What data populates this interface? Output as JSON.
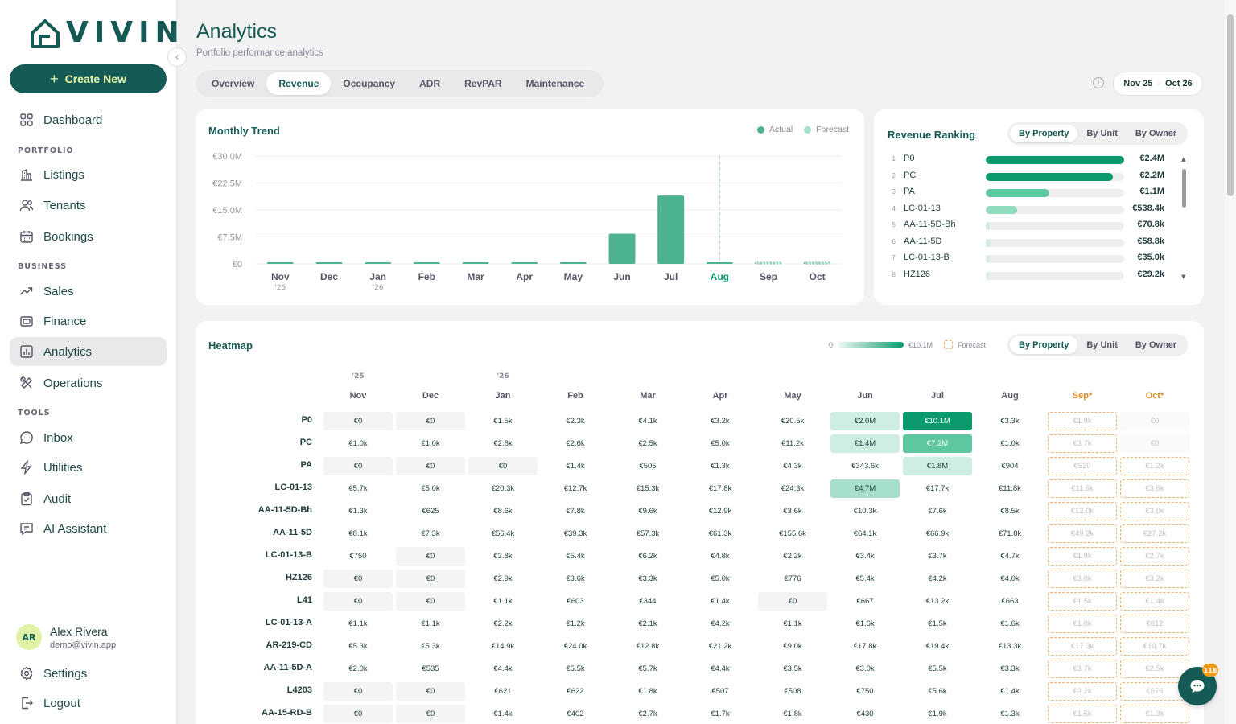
{
  "app": {
    "brand": "VIVIN",
    "create_label": "Create New"
  },
  "colors": {
    "brand": "#165a55",
    "accent": "#e6f6a9",
    "actual": "#4db38e",
    "forecast": "#a6e0cc",
    "forecast_border": "#f0b070",
    "forecast_text": "#e0891a"
  },
  "sidebar": {
    "dashboard": "Dashboard",
    "sec_portfolio": "PORTFOLIO",
    "listings": "Listings",
    "tenants": "Tenants",
    "bookings": "Bookings",
    "sec_business": "BUSINESS",
    "sales": "Sales",
    "finance": "Finance",
    "analytics": "Analytics",
    "operations": "Operations",
    "sec_tools": "TOOLS",
    "inbox": "Inbox",
    "utilities": "Utilities",
    "audit": "Audit",
    "ai_assistant": "AI Assistant",
    "settings": "Settings",
    "logout": "Logout"
  },
  "user": {
    "initials": "AR",
    "name": "Alex Rivera",
    "email": "demo@vivin.app"
  },
  "page": {
    "title": "Analytics",
    "subtitle": "Portfolio performance analytics"
  },
  "tabs": [
    "Overview",
    "Revenue",
    "Occupancy",
    "ADR",
    "RevPAR",
    "Maintenance"
  ],
  "date_range": {
    "start": "Nov 25",
    "sep": "-",
    "end": "Oct 26"
  },
  "chart_data": {
    "type": "bar",
    "title": "Monthly Trend",
    "legend": [
      "Actual",
      "Forecast"
    ],
    "categories": [
      "Nov",
      "Dec",
      "Jan",
      "Feb",
      "Mar",
      "Apr",
      "May",
      "Jun",
      "Jul",
      "Aug",
      "Sep",
      "Oct"
    ],
    "category_years": [
      "'25",
      "",
      "'26",
      "",
      "",
      "",
      "",
      "",
      "",
      "",
      "",
      ""
    ],
    "y_ticks": [
      "€0",
      "€7.5M",
      "€15.0M",
      "€22.5M",
      "€30.0M"
    ],
    "ylim": [
      0,
      30000000
    ],
    "series": [
      {
        "name": "Actual",
        "values": [
          160000,
          180000,
          250000,
          230000,
          240000,
          300000,
          360000,
          8400000,
          19000000,
          140000,
          null,
          null
        ]
      },
      {
        "name": "Forecast",
        "values": [
          null,
          null,
          null,
          null,
          null,
          null,
          null,
          null,
          null,
          null,
          200000,
          150000
        ]
      }
    ],
    "current_month": "Aug",
    "legend_position": "top-right",
    "grid": true
  },
  "ranking": {
    "title": "Revenue Ranking",
    "segments": [
      "By Property",
      "By Unit",
      "By Owner"
    ],
    "max": 2400000,
    "rows": [
      {
        "rank": "1",
        "name": "P0",
        "value": 2400000,
        "label": "€2.4M"
      },
      {
        "rank": "2",
        "name": "PC",
        "value": 2200000,
        "label": "€2.2M"
      },
      {
        "rank": "3",
        "name": "PA",
        "value": 1100000,
        "label": "€1.1M"
      },
      {
        "rank": "4",
        "name": "LC-01-13",
        "value": 538400,
        "label": "€538.4k"
      },
      {
        "rank": "5",
        "name": "AA-11-5D-Bh",
        "value": 70800,
        "label": "€70.8k"
      },
      {
        "rank": "6",
        "name": "AA-11-5D",
        "value": 58800,
        "label": "€58.8k"
      },
      {
        "rank": "7",
        "name": "LC-01-13-B",
        "value": 35000,
        "label": "€35.0k"
      },
      {
        "rank": "8",
        "name": "HZ126",
        "value": 29200,
        "label": "€29.2k"
      }
    ]
  },
  "heatmap": {
    "title": "Heatmap",
    "scale_min": "0",
    "scale_max": "€10.1M",
    "forecast_label": "Forecast",
    "segments": [
      "By Property",
      "By Unit",
      "By Owner"
    ],
    "years": [
      "'25",
      "",
      "'26",
      "",
      "",
      "",
      "",
      "",
      "",
      "",
      "",
      ""
    ],
    "months": [
      "Nov",
      "Dec",
      "Jan",
      "Feb",
      "Mar",
      "Apr",
      "May",
      "Jun",
      "Jul",
      "Aug",
      "Sep*",
      "Oct*"
    ],
    "forecast_cols": [
      10,
      11
    ],
    "rows": [
      {
        "name": "P0",
        "cells": [
          "€0",
          "€0",
          "€1.5k",
          "€2.3k",
          "€4.1k",
          "€3.2k",
          "€20.5k",
          "€2.0M",
          "€10.1M",
          "€3.3k",
          "€1.9k",
          "€0"
        ],
        "levels": [
          0,
          0,
          0,
          0,
          0,
          0,
          0,
          2,
          5,
          0,
          0,
          0
        ]
      },
      {
        "name": "PC",
        "cells": [
          "€1.0k",
          "€1.0k",
          "€2.8k",
          "€2.6k",
          "€2.5k",
          "€5.0k",
          "€11.2k",
          "€1.4M",
          "€7.2M",
          "€1.0k",
          "€3.7k",
          "€0"
        ],
        "levels": [
          0,
          0,
          0,
          0,
          0,
          0,
          0,
          2,
          4,
          0,
          0,
          0
        ]
      },
      {
        "name": "PA",
        "cells": [
          "€0",
          "€0",
          "€0",
          "€1.4k",
          "€505",
          "€1.3k",
          "€4.3k",
          "€343.6k",
          "€1.8M",
          "€904",
          "€520",
          "€1.2k"
        ],
        "levels": [
          0,
          0,
          0,
          0,
          0,
          0,
          0,
          0,
          2,
          0,
          0,
          0
        ]
      },
      {
        "name": "LC-01-13",
        "cells": [
          "€5.7k",
          "€5.0k",
          "€20.3k",
          "€12.7k",
          "€15.3k",
          "€17.8k",
          "€24.3k",
          "€4.7M",
          "€17.7k",
          "€11.8k",
          "€11.6k",
          "€3.6k"
        ],
        "levels": [
          0,
          0,
          0,
          0,
          0,
          0,
          0,
          3,
          0,
          0,
          0,
          0
        ]
      },
      {
        "name": "AA-11-5D-Bh",
        "cells": [
          "€1.3k",
          "€625",
          "€8.6k",
          "€7.8k",
          "€9.6k",
          "€12.9k",
          "€3.6k",
          "€10.3k",
          "€7.6k",
          "€8.5k",
          "€12.0k",
          "€3.0k"
        ],
        "levels": [
          0,
          0,
          0,
          0,
          0,
          0,
          0,
          0,
          0,
          0,
          0,
          0
        ]
      },
      {
        "name": "AA-11-5D",
        "cells": [
          "€8.1k",
          "€7.3k",
          "€56.4k",
          "€39.3k",
          "€57.3k",
          "€61.3k",
          "€155.6k",
          "€64.1k",
          "€66.9k",
          "€71.8k",
          "€49.2k",
          "€27.2k"
        ],
        "levels": [
          0,
          0,
          0,
          0,
          0,
          0,
          0,
          0,
          0,
          0,
          0,
          0
        ]
      },
      {
        "name": "LC-01-13-B",
        "cells": [
          "€750",
          "€0",
          "€3.8k",
          "€5.4k",
          "€6.2k",
          "€4.8k",
          "€2.2k",
          "€3.4k",
          "€3.7k",
          "€4.7k",
          "€1.9k",
          "€2.7k"
        ],
        "levels": [
          0,
          0,
          0,
          0,
          0,
          0,
          0,
          0,
          0,
          0,
          0,
          0
        ]
      },
      {
        "name": "HZ126",
        "cells": [
          "€0",
          "€0",
          "€2.9k",
          "€3.6k",
          "€3.3k",
          "€5.0k",
          "€776",
          "€5.4k",
          "€4.2k",
          "€4.0k",
          "€3.8k",
          "€3.2k"
        ],
        "levels": [
          0,
          0,
          0,
          0,
          0,
          0,
          0,
          0,
          0,
          0,
          0,
          0
        ]
      },
      {
        "name": "L41",
        "cells": [
          "€0",
          "€0",
          "€1.1k",
          "€603",
          "€344",
          "€1.4k",
          "€0",
          "€667",
          "€13.2k",
          "€663",
          "€1.5k",
          "€1.4k"
        ],
        "levels": [
          0,
          0,
          0,
          0,
          0,
          0,
          0,
          0,
          0,
          0,
          0,
          0
        ]
      },
      {
        "name": "LC-01-13-A",
        "cells": [
          "€1.1k",
          "€1.1k",
          "€2.2k",
          "€1.2k",
          "€2.1k",
          "€4.2k",
          "€1.1k",
          "€1.6k",
          "€1.5k",
          "€1.6k",
          "€1.8k",
          "€812"
        ],
        "levels": [
          0,
          0,
          0,
          0,
          0,
          0,
          0,
          0,
          0,
          0,
          0,
          0
        ]
      },
      {
        "name": "AR-219-CD",
        "cells": [
          "€5.3k",
          "€5.3k",
          "€14.9k",
          "€24.0k",
          "€12.8k",
          "€21.2k",
          "€9.0k",
          "€17.8k",
          "€19.4k",
          "€13.3k",
          "€17.3k",
          "€10.7k"
        ],
        "levels": [
          0,
          0,
          0,
          0,
          0,
          0,
          0,
          0,
          0,
          0,
          0,
          0
        ]
      },
      {
        "name": "AA-11-5D-A",
        "cells": [
          "€2.0k",
          "€535",
          "€4.4k",
          "€5.5k",
          "€5.7k",
          "€4.4k",
          "€3.5k",
          "€3.0k",
          "€5.5k",
          "€3.3k",
          "€3.7k",
          "€2.5k"
        ],
        "levels": [
          0,
          0,
          0,
          0,
          0,
          0,
          0,
          0,
          0,
          0,
          0,
          0
        ]
      },
      {
        "name": "L4203",
        "cells": [
          "€0",
          "€0",
          "€621",
          "€622",
          "€1.8k",
          "€507",
          "€508",
          "€750",
          "€5.6k",
          "€1.4k",
          "€2.2k",
          "€676"
        ],
        "levels": [
          0,
          0,
          0,
          0,
          0,
          0,
          0,
          0,
          0,
          0,
          0,
          0
        ]
      },
      {
        "name": "AA-15-RD-B",
        "cells": [
          "€0",
          "€0",
          "€1.4k",
          "€402",
          "€2.7k",
          "€1.7k",
          "€1.8k",
          "€430",
          "€1.9k",
          "€1.3k",
          "€1.5k",
          "€1.3k"
        ],
        "levels": [
          0,
          0,
          0,
          0,
          0,
          0,
          0,
          0,
          0,
          0,
          0,
          0
        ]
      }
    ]
  },
  "chat": {
    "badge": "118"
  }
}
